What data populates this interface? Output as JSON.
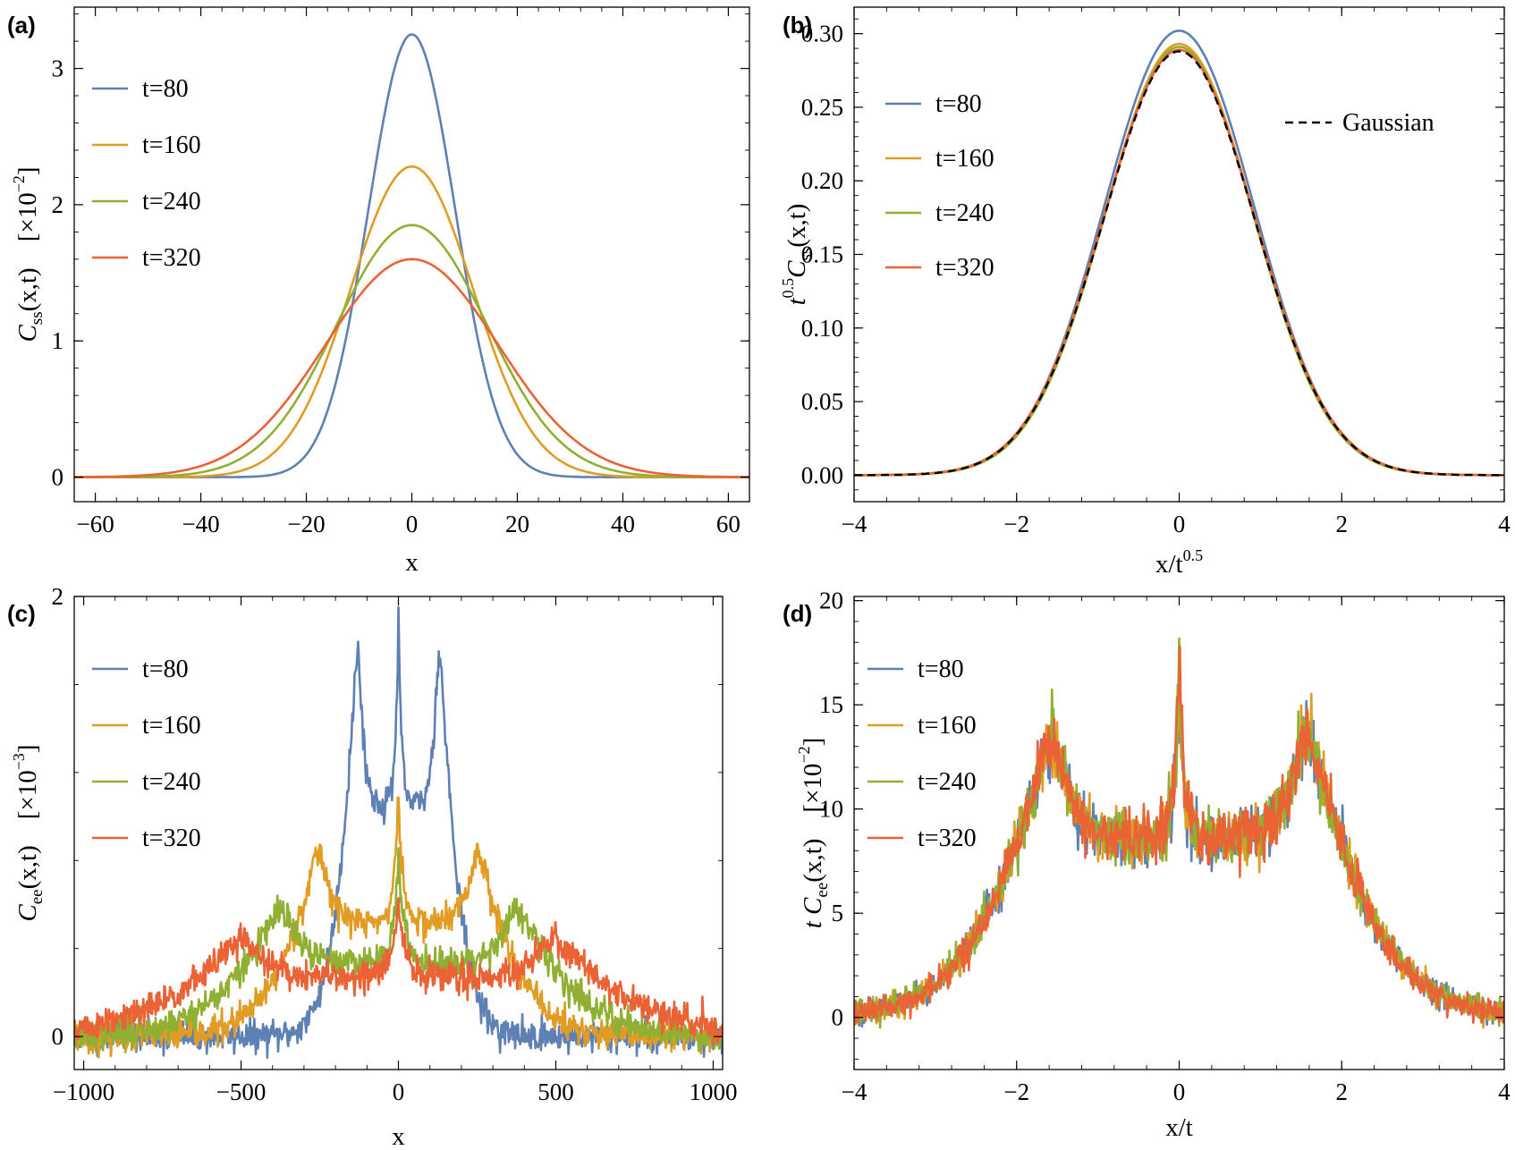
{
  "colors": {
    "t80": "#5e81b5",
    "t160": "#e19c24",
    "t240": "#8fb032",
    "t320": "#eb6235",
    "gaussian": "#000000"
  },
  "chart_data": [
    {
      "id": "a",
      "panel_label": "(a)",
      "type": "line",
      "xlabel": "x",
      "ylabel_main": "C",
      "ylabel_sub": "ss",
      "ylabel_tail": "(x,t)",
      "ylabel_scale_prefix": "[×10",
      "ylabel_scale_exp": "−2",
      "ylabel_scale_suffix": "]",
      "xlim": [
        -64,
        64
      ],
      "ylim": [
        -0.18,
        3.45
      ],
      "xticks": [
        -60,
        -40,
        -20,
        0,
        20,
        40,
        60
      ],
      "xtick_labels": [
        "−60",
        "−40",
        "−20",
        "0",
        "20",
        "40",
        "60"
      ],
      "yticks": [
        0,
        1,
        2,
        3
      ],
      "ytick_labels": [
        "0",
        "1",
        "2",
        "3"
      ],
      "legend": [
        "t=80",
        "t=160",
        "t=240",
        "t=320"
      ],
      "legend_position": "top-left",
      "series": [
        {
          "name": "t=80",
          "model": "gaussian",
          "amplitude": 3.25,
          "sigma": 8.2
        },
        {
          "name": "t=160",
          "model": "gaussian",
          "amplitude": 2.28,
          "sigma": 11.6
        },
        {
          "name": "t=240",
          "model": "gaussian",
          "amplitude": 1.85,
          "sigma": 14.2
        },
        {
          "name": "t=320",
          "model": "gaussian",
          "amplitude": 1.6,
          "sigma": 16.4
        }
      ]
    },
    {
      "id": "b",
      "panel_label": "(b)",
      "type": "line",
      "xlabel_main": "x/t",
      "xlabel_exp": "0.5",
      "ylabel_prefix": "t",
      "ylabel_prefix_exp": "0.5",
      "ylabel_main": "C",
      "ylabel_sub": "ss",
      "ylabel_tail": "(x,t)",
      "xlim": [
        -4,
        4
      ],
      "ylim": [
        -0.018,
        0.318
      ],
      "xticks": [
        -4,
        -2,
        0,
        2,
        4
      ],
      "xtick_labels": [
        "−4",
        "−2",
        "0",
        "2",
        "4"
      ],
      "yticks": [
        0,
        0.05,
        0.1,
        0.15,
        0.2,
        0.25,
        0.3
      ],
      "ytick_labels": [
        "0.00",
        "0.05",
        "0.10",
        "0.15",
        "0.20",
        "0.25",
        "0.30"
      ],
      "legend": [
        "t=80",
        "t=160",
        "t=240",
        "t=320"
      ],
      "legend_position": "top-left",
      "gaussian_label": "Gaussian",
      "series": [
        {
          "name": "t=80",
          "model": "gaussian",
          "amplitude": 0.302,
          "sigma": 0.92
        },
        {
          "name": "t=160",
          "model": "gaussian",
          "amplitude": 0.293,
          "sigma": 0.915
        },
        {
          "name": "t=240",
          "model": "gaussian",
          "amplitude": 0.291,
          "sigma": 0.915
        },
        {
          "name": "t=320",
          "model": "gaussian",
          "amplitude": 0.289,
          "sigma": 0.93
        },
        {
          "name": "Gaussian",
          "model": "gaussian",
          "amplitude": 0.288,
          "sigma": 0.925,
          "dashed": true
        }
      ]
    },
    {
      "id": "c",
      "panel_label": "(c)",
      "type": "line",
      "xlabel": "x",
      "ylabel_main": "C",
      "ylabel_sub": "ee",
      "ylabel_tail": "(x,t)",
      "ylabel_scale_prefix": "[×10",
      "ylabel_scale_exp": "−3",
      "ylabel_scale_suffix": "]",
      "xlim": [
        -1030,
        1030
      ],
      "ylim": [
        -0.15,
        2.0
      ],
      "xticks": [
        -1000,
        -500,
        0,
        500,
        1000
      ],
      "xtick_labels": [
        "−1000",
        "−500",
        "0",
        "500",
        "1000"
      ],
      "yticks": [
        0,
        2
      ],
      "ytick_labels": [
        "0",
        "2"
      ],
      "legend": [
        "t=80",
        "t=160",
        "t=240",
        "t=320"
      ],
      "legend_position": "top-left",
      "noise": 0.035,
      "series": [
        {
          "name": "t=80",
          "model": "ballistic",
          "edge": 128,
          "plateau": 1.05,
          "peak": 1.62,
          "center": 1.87,
          "center_width": 10,
          "seed": 11
        },
        {
          "name": "t=160",
          "model": "ballistic",
          "edge": 250,
          "plateau": 0.52,
          "peak": 0.78,
          "center": 1.1,
          "center_width": 14,
          "seed": 23
        },
        {
          "name": "t=240",
          "model": "ballistic",
          "edge": 368,
          "plateau": 0.34,
          "peak": 0.53,
          "center": 0.8,
          "center_width": 18,
          "seed": 37
        },
        {
          "name": "t=320",
          "model": "ballistic",
          "edge": 490,
          "plateau": 0.27,
          "peak": 0.41,
          "center": 0.6,
          "center_width": 22,
          "seed": 51
        }
      ]
    },
    {
      "id": "d",
      "panel_label": "(d)",
      "type": "line",
      "xlabel": "x/t",
      "ylabel_main": "t C",
      "ylabel_sub": "ee",
      "ylabel_tail": "(x,t)",
      "ylabel_scale_prefix": "[×10",
      "ylabel_scale_exp": "−2",
      "ylabel_scale_suffix": "]",
      "xlim": [
        -4,
        4
      ],
      "ylim": [
        -2.5,
        20.2
      ],
      "xticks": [
        -4,
        -2,
        0,
        2,
        4
      ],
      "xtick_labels": [
        "−4",
        "−2",
        "0",
        "2",
        "4"
      ],
      "yticks": [
        0,
        5,
        10,
        15,
        20
      ],
      "ytick_labels": [
        "0",
        "5",
        "10",
        "15",
        "20"
      ],
      "legend": [
        "t=80",
        "t=160",
        "t=240",
        "t=320"
      ],
      "legend_position": "top-left",
      "noise": 0.7,
      "series": [
        {
          "name": "t=80",
          "model": "scaled",
          "edge": 1.55,
          "plateau": 8.6,
          "peak": 12.6,
          "center": 15.3,
          "center_width": 0.06,
          "seed": 101
        },
        {
          "name": "t=160",
          "model": "scaled",
          "edge": 1.55,
          "plateau": 8.6,
          "peak": 12.6,
          "center": 16.2,
          "center_width": 0.06,
          "seed": 103
        },
        {
          "name": "t=240",
          "model": "scaled",
          "edge": 1.55,
          "plateau": 8.6,
          "peak": 12.6,
          "center": 16.8,
          "center_width": 0.06,
          "seed": 107
        },
        {
          "name": "t=320",
          "model": "scaled",
          "edge": 1.55,
          "plateau": 8.6,
          "peak": 12.6,
          "center": 18.0,
          "center_width": 0.06,
          "seed": 109
        }
      ]
    }
  ]
}
